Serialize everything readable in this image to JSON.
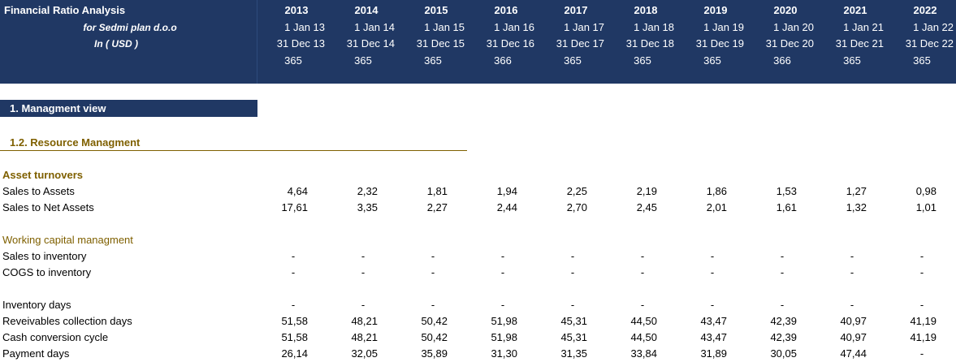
{
  "header": {
    "title": "Financial Ratio Analysis",
    "entity": "for Sedmi plan d.o.o",
    "currency": "In ( USD )",
    "years": [
      2013,
      2014,
      2015,
      2016,
      2017,
      2018,
      2019,
      2020,
      2021,
      2022
    ],
    "starts": [
      "1 Jan 13",
      "1 Jan 14",
      "1 Jan 15",
      "1 Jan 16",
      "1 Jan 17",
      "1 Jan 18",
      "1 Jan 19",
      "1 Jan 20",
      "1 Jan 21",
      "1 Jan 22"
    ],
    "ends": [
      "31 Dec 13",
      "31 Dec 14",
      "31 Dec 15",
      "31 Dec 16",
      "31 Dec 17",
      "31 Dec 18",
      "31 Dec 19",
      "31 Dec 20",
      "31 Dec 21",
      "31 Dec 22"
    ],
    "days": [
      365,
      365,
      365,
      366,
      365,
      365,
      365,
      366,
      365,
      365
    ]
  },
  "section": "1. Managment view",
  "subsection": "1.2. Resource Managment",
  "groups": [
    {
      "heading": "Asset turnovers",
      "rows": [
        {
          "label": "Sales to Assets",
          "values": [
            "4,64",
            "2,32",
            "1,81",
            "1,94",
            "2,25",
            "2,19",
            "1,86",
            "1,53",
            "1,27",
            "0,98"
          ]
        },
        {
          "label": "Sales to Net Assets",
          "values": [
            "17,61",
            "3,35",
            "2,27",
            "2,44",
            "2,70",
            "2,45",
            "2,01",
            "1,61",
            "1,32",
            "1,01"
          ]
        }
      ]
    },
    {
      "heading": "Working capital managment",
      "rows": [
        {
          "label": "Sales to inventory",
          "values": [
            "-",
            "-",
            "-",
            "-",
            "-",
            "-",
            "-",
            "-",
            "-",
            "-"
          ]
        },
        {
          "label": "COGS to inventory",
          "values": [
            "-",
            "-",
            "-",
            "-",
            "-",
            "-",
            "-",
            "-",
            "-",
            "-"
          ]
        }
      ]
    },
    {
      "rows": [
        {
          "label": "Inventory days",
          "values": [
            "-",
            "-",
            "-",
            "-",
            "-",
            "-",
            "-",
            "-",
            "-",
            "-"
          ]
        },
        {
          "label": "Reveivables collection days",
          "values": [
            "51,58",
            "48,21",
            "50,42",
            "51,98",
            "45,31",
            "44,50",
            "43,47",
            "42,39",
            "40,97",
            "41,19"
          ]
        },
        {
          "label": "Cash conversion cycle",
          "values": [
            "51,58",
            "48,21",
            "50,42",
            "51,98",
            "45,31",
            "44,50",
            "43,47",
            "42,39",
            "40,97",
            "41,19"
          ]
        },
        {
          "label": "Payment days",
          "values": [
            "26,14",
            "32,05",
            "35,89",
            "31,30",
            "31,35",
            "33,84",
            "31,89",
            "30,05",
            "47,44",
            "-"
          ]
        }
      ]
    }
  ]
}
